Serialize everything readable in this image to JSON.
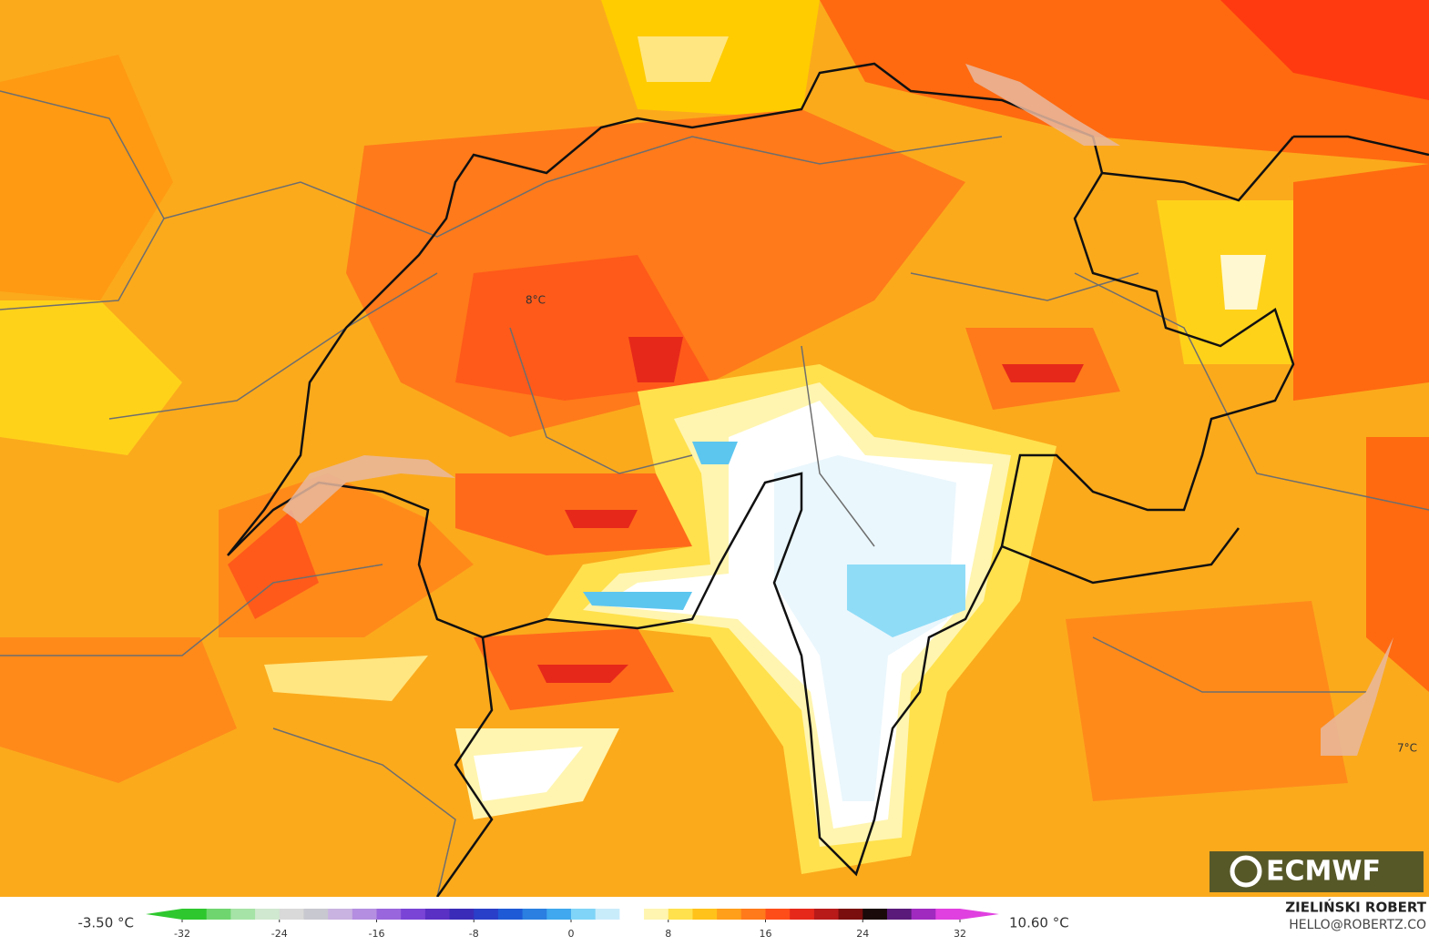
{
  "map": {
    "labels": [
      {
        "text": "8°C"
      },
      {
        "text": "7°C"
      }
    ],
    "min_label": "-3.50 °C",
    "max_label": "10.60 °C",
    "logo": "ECMWF",
    "author": "ZIELIŃSKI ROBERT",
    "contact": "HELLO@ROBERTZ.CO",
    "colorbar": {
      "lim": [
        -32,
        32
      ],
      "ticks": [
        -32,
        -24,
        -16,
        -8,
        0,
        8,
        16,
        24,
        32
      ],
      "colors": [
        "#2ec82e",
        "#6fd66f",
        "#a6e3a6",
        "#cfe8cf",
        "#d9d9d9",
        "#c8c8d0",
        "#c9b3e0",
        "#b48ee0",
        "#9966dd",
        "#7a44d6",
        "#5a2fc4",
        "#3a2cb8",
        "#2a3fc9",
        "#1f5ad6",
        "#2a7fe0",
        "#3fa8ee",
        "#7fd4f7",
        "#c9ecfb",
        "#ffffff",
        "#fff5b0",
        "#ffe14d",
        "#ffc21a",
        "#ff9f1a",
        "#ff7a1a",
        "#ff4d1a",
        "#e6281a",
        "#b81a1a",
        "#7a0d0d",
        "#1a0a0a",
        "#5a1a7a",
        "#a02ac0",
        "#e040e0"
      ]
    }
  }
}
